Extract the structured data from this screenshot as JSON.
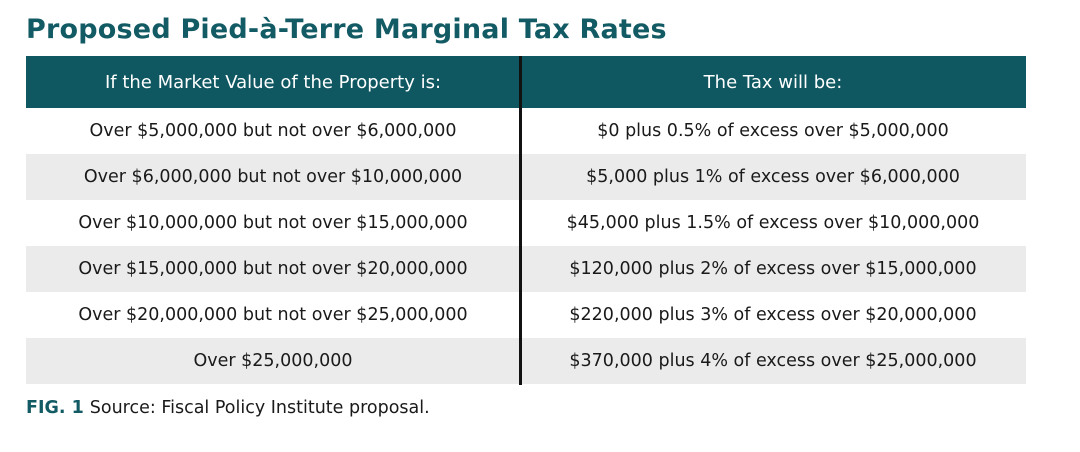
{
  "title": "Proposed Pied-à-Terre Marginal Tax Rates",
  "table": {
    "headers": [
      "If the Market Value of the Property is:",
      "The Tax will be:"
    ],
    "rows": [
      [
        "Over $5,000,000 but not over $6,000,000",
        "$0 plus 0.5% of excess over $5,000,000"
      ],
      [
        "Over $6,000,000 but not over $10,000,000",
        "$5,000 plus 1% of excess over $6,000,000"
      ],
      [
        "Over $10,000,000 but not over $15,000,000",
        "$45,000 plus 1.5% of excess over $10,000,000"
      ],
      [
        "Over $15,000,000 but not over $20,000,000",
        "$120,000 plus 2% of excess over $15,000,000"
      ],
      [
        "Over $20,000,000 but not over $25,000,000",
        "$220,000 plus 3% of excess over $20,000,000"
      ],
      [
        "Over $25,000,000",
        "$370,000 plus 4% of excess over $25,000,000"
      ]
    ]
  },
  "caption": {
    "label": "FIG. 1",
    "text": "Source: Fiscal Policy Institute proposal."
  },
  "colors": {
    "header_bg": "#0f5761",
    "title": "#125a64",
    "shaded_row": "#ebebeb"
  }
}
